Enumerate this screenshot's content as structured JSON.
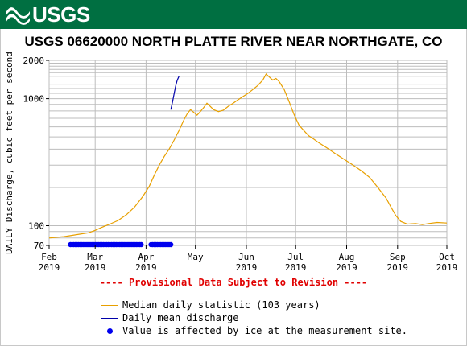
{
  "header": {
    "agency": "USGS"
  },
  "chart_data": {
    "type": "line",
    "title": "USGS 06620000 NORTH PLATTE RIVER NEAR NORTHGATE, CO",
    "ylabel": "DAILY Discharge, cubic feet per second",
    "xlabel": "",
    "y_scale": "log",
    "ylim": [
      70,
      2000
    ],
    "y_ticks": [
      {
        "value": 70,
        "label": "70"
      },
      {
        "value": 100,
        "label": "100"
      },
      {
        "value": 1000,
        "label": "1000"
      },
      {
        "value": 2000,
        "label": "2000"
      }
    ],
    "xlim": [
      "2019-02-01",
      "2019-10-01"
    ],
    "x_ticks": [
      {
        "date": "2019-02-01",
        "month": "Feb",
        "year": "2019"
      },
      {
        "date": "2019-03-01",
        "month": "Mar",
        "year": "2019"
      },
      {
        "date": "2019-04-01",
        "month": "Apr",
        "year": "2019"
      },
      {
        "date": "2019-05-01",
        "month": "May",
        "year": ""
      },
      {
        "date": "2019-06-01",
        "month": "Jun",
        "year": "2019"
      },
      {
        "date": "2019-07-01",
        "month": "Jul",
        "year": "2019"
      },
      {
        "date": "2019-08-01",
        "month": "Aug",
        "year": "2019"
      },
      {
        "date": "2019-09-01",
        "month": "Sep",
        "year": "2019"
      },
      {
        "date": "2019-10-01",
        "month": "Oct",
        "year": "2019"
      }
    ],
    "grid": true,
    "series": [
      {
        "name": "Median daily statistic (103 years)",
        "color": "#e8a000",
        "points": [
          [
            "2019-02-01",
            80
          ],
          [
            "2019-02-05",
            81
          ],
          [
            "2019-02-10",
            82
          ],
          [
            "2019-02-15",
            84
          ],
          [
            "2019-02-20",
            86
          ],
          [
            "2019-02-25",
            88
          ],
          [
            "2019-03-01",
            92
          ],
          [
            "2019-03-05",
            97
          ],
          [
            "2019-03-10",
            103
          ],
          [
            "2019-03-15",
            110
          ],
          [
            "2019-03-20",
            122
          ],
          [
            "2019-03-25",
            140
          ],
          [
            "2019-03-30",
            170
          ],
          [
            "2019-04-03",
            205
          ],
          [
            "2019-04-06",
            250
          ],
          [
            "2019-04-09",
            300
          ],
          [
            "2019-04-12",
            350
          ],
          [
            "2019-04-15",
            400
          ],
          [
            "2019-04-18",
            470
          ],
          [
            "2019-04-21",
            560
          ],
          [
            "2019-04-24",
            680
          ],
          [
            "2019-04-26",
            760
          ],
          [
            "2019-04-28",
            820
          ],
          [
            "2019-04-30",
            780
          ],
          [
            "2019-05-02",
            740
          ],
          [
            "2019-05-04",
            790
          ],
          [
            "2019-05-06",
            850
          ],
          [
            "2019-05-08",
            920
          ],
          [
            "2019-05-10",
            870
          ],
          [
            "2019-05-12",
            820
          ],
          [
            "2019-05-15",
            790
          ],
          [
            "2019-05-18",
            810
          ],
          [
            "2019-05-21",
            870
          ],
          [
            "2019-05-24",
            920
          ],
          [
            "2019-05-27",
            980
          ],
          [
            "2019-05-30",
            1040
          ],
          [
            "2019-06-02",
            1100
          ],
          [
            "2019-06-05",
            1180
          ],
          [
            "2019-06-08",
            1270
          ],
          [
            "2019-06-11",
            1400
          ],
          [
            "2019-06-13",
            1560
          ],
          [
            "2019-06-15",
            1480
          ],
          [
            "2019-06-17",
            1400
          ],
          [
            "2019-06-19",
            1440
          ],
          [
            "2019-06-21",
            1360
          ],
          [
            "2019-06-24",
            1180
          ],
          [
            "2019-06-27",
            950
          ],
          [
            "2019-06-30",
            750
          ],
          [
            "2019-07-03",
            620
          ],
          [
            "2019-07-06",
            560
          ],
          [
            "2019-07-09",
            510
          ],
          [
            "2019-07-12",
            480
          ],
          [
            "2019-07-15",
            450
          ],
          [
            "2019-07-20",
            410
          ],
          [
            "2019-07-25",
            370
          ],
          [
            "2019-07-31",
            330
          ],
          [
            "2019-08-05",
            300
          ],
          [
            "2019-08-10",
            270
          ],
          [
            "2019-08-15",
            240
          ],
          [
            "2019-08-20",
            200
          ],
          [
            "2019-08-25",
            165
          ],
          [
            "2019-08-28",
            140
          ],
          [
            "2019-08-31",
            120
          ],
          [
            "2019-09-03",
            108
          ],
          [
            "2019-09-07",
            103
          ],
          [
            "2019-09-12",
            104
          ],
          [
            "2019-09-16",
            102
          ],
          [
            "2019-09-20",
            104
          ],
          [
            "2019-09-25",
            106
          ],
          [
            "2019-10-01",
            105
          ]
        ]
      },
      {
        "name": "Daily mean discharge",
        "color": "#0000aa",
        "points": [
          [
            "2019-04-16",
            820
          ],
          [
            "2019-04-17",
            930
          ],
          [
            "2019-04-18",
            1080
          ],
          [
            "2019-04-19",
            1260
          ],
          [
            "2019-04-20",
            1400
          ],
          [
            "2019-04-21",
            1500
          ]
        ]
      }
    ],
    "ice_affected": {
      "name": "Value is affected by ice at the measurement site.",
      "color": "#0000ee",
      "value": 71,
      "ranges": [
        [
          "2019-02-14",
          "2019-03-29"
        ],
        [
          "2019-04-04",
          "2019-04-16"
        ]
      ]
    },
    "notice": "---- Provisional Data Subject to Revision ----"
  }
}
